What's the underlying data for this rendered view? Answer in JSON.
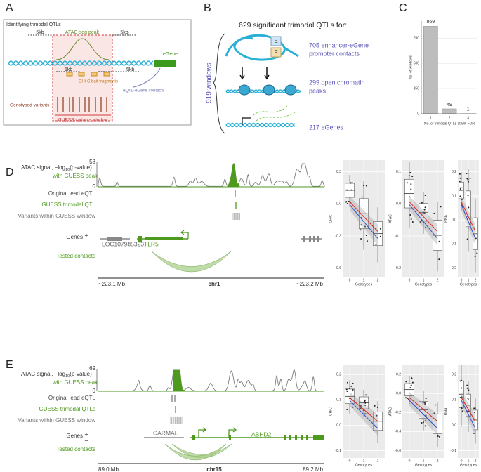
{
  "panels": {
    "A": {
      "label": "A",
      "title": "Identifying trimodal QTLs",
      "flank_left": "5kb",
      "peak": "ATAC-seq peak",
      "flank_right": "5kb",
      "egene": "eGene",
      "bait_left": "5kb",
      "bait_right": "5kb",
      "baits": "CHi-C bait fragments",
      "contacts": "eQTL-eGene contacts",
      "variants": "Genotyped variants",
      "window": "GUESS variants window"
    },
    "B": {
      "label": "B",
      "title": "629 significant trimodal QTLs  for:",
      "windows": "919 windows",
      "box_e": "E",
      "box_p": "P",
      "items": [
        [
          "705 enhancer-eGene",
          "promoter contacts"
        ],
        [
          "299 open chromatin",
          "peaks"
        ],
        [
          "217 eGenes"
        ]
      ]
    },
    "C": {
      "label": "C"
    },
    "D": {
      "label": "D",
      "signal": [
        "ATAC signal, −log",
        "10",
        "(p-value)"
      ],
      "signal_max": "58",
      "signal_min": "0",
      "peak": "with GUESS peak",
      "lead": "Original lead eQTL",
      "qtl": "GUESS trimodal QTL",
      "window": "Variants within GUESS window",
      "genes": "Genes",
      "plus": "+",
      "minus": "−",
      "gene_names": [
        "LOC107985323",
        "TLR5"
      ],
      "contacts": "Tested contacts",
      "axis": [
        "~223.1 Mb",
        "chr1",
        "~223.2 Mb"
      ],
      "boxplots": [
        {
          "ylabel": "CHiC",
          "yticks": [
            "0.3",
            "0.0",
            "-0.3",
            "-0.6"
          ]
        },
        {
          "ylabel": "ATAC",
          "yticks": [
            "0.1",
            "0.0",
            "-0.1",
            "-0.2"
          ]
        },
        {
          "ylabel": "RNA",
          "yticks": [
            "0.2",
            "0.1",
            "0.0",
            "-0.1",
            "-0.2"
          ]
        }
      ],
      "xticks": [
        "0",
        "1",
        "2"
      ],
      "xlabel": "Genotypes"
    },
    "E": {
      "label": "E",
      "signal": [
        "ATAC signal, −log",
        "10",
        "(p-value)"
      ],
      "signal_max": "69",
      "signal_min": "0",
      "peak": "with GUESS peak",
      "lead": "Original lead eQTL",
      "qtl": "GUESS trimodal QTLs",
      "window": "Variants within GUESS window",
      "genes": "Genes",
      "plus": "+",
      "minus": "−",
      "gene_names": [
        "CARMAL",
        "ABHD2"
      ],
      "contacts": "Tested contacts",
      "axis": [
        "89.0 Mb",
        "chr15",
        "89.2 Mb"
      ],
      "boxplots": [
        {
          "ylabel": "CHiC",
          "yticks": [
            "0.2",
            "0.1",
            "0.0",
            "-0.1"
          ]
        },
        {
          "ylabel": "ATAC",
          "yticks": [
            "0.2",
            "0.0",
            "-0.2",
            "-0.4",
            "-0.6"
          ]
        },
        {
          "ylabel": "RNA",
          "yticks": [
            "0.2",
            "0.1",
            "0.0",
            "-0.1"
          ]
        }
      ],
      "xticks": [
        "0",
        "1",
        "2"
      ],
      "xlabel": "Genotypes"
    }
  },
  "chart_data": {
    "type": "bar",
    "categories": [
      "1",
      "2",
      "3"
    ],
    "values": [
      869,
      49,
      1
    ],
    "color": "#bdbdbd",
    "ylabel": "No. of windows",
    "xlabel": "No. of trimodal QTLs at 5% FDR",
    "ylim": [
      0,
      920
    ],
    "yticks": [
      0,
      250,
      500,
      750
    ]
  }
}
